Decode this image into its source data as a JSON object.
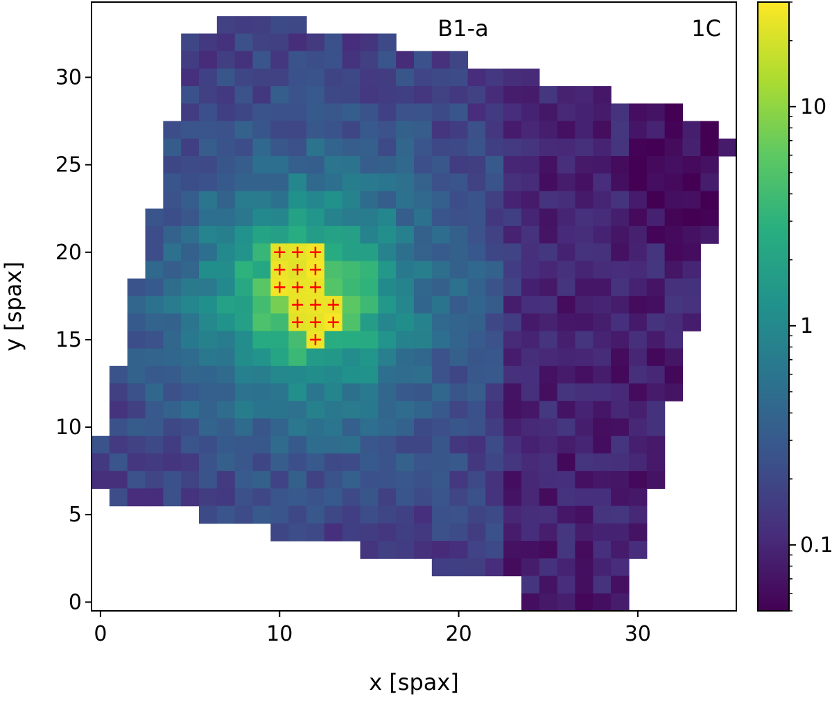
{
  "chart_data": {
    "type": "heatmap",
    "title": "",
    "panel_labels": [
      "B1-a",
      "1C"
    ],
    "xlabel": "x [spax]",
    "ylabel": "y [spax]",
    "xlim": [
      -0.5,
      35.5
    ],
    "ylim": [
      -0.5,
      34.3
    ],
    "x_ticks": [
      0,
      10,
      20,
      30
    ],
    "y_ticks": [
      0,
      5,
      10,
      15,
      20,
      25,
      30
    ],
    "x_tick_labels": [
      "0",
      "10",
      "20",
      "30"
    ],
    "y_tick_labels": [
      "0",
      "5",
      "10",
      "15",
      "20",
      "25",
      "30"
    ],
    "colormap": "viridis",
    "color_scale": "log",
    "colorbar": {
      "range": [
        0.05,
        30
      ],
      "major_ticks": [
        0.1,
        1,
        10
      ],
      "major_tick_labels": [
        "0.1",
        "1",
        "10"
      ]
    },
    "grid": false,
    "footprint_rows": [
      {
        "y": 33,
        "x_min": 7,
        "x_max": 11
      },
      {
        "y": 32,
        "x_min": 5,
        "x_max": 16
      },
      {
        "y": 31,
        "x_min": 5,
        "x_max": 20
      },
      {
        "y": 30,
        "x_min": 5,
        "x_max": 24
      },
      {
        "y": 29,
        "x_min": 5,
        "x_max": 28
      },
      {
        "y": 28,
        "x_min": 5,
        "x_max": 32
      },
      {
        "y": 27,
        "x_min": 4,
        "x_max": 34
      },
      {
        "y": 26,
        "x_min": 4,
        "x_max": 35
      },
      {
        "y": 25,
        "x_min": 4,
        "x_max": 34
      },
      {
        "y": 24,
        "x_min": 4,
        "x_max": 34
      },
      {
        "y": 23,
        "x_min": 4,
        "x_max": 34
      },
      {
        "y": 22,
        "x_min": 3,
        "x_max": 34
      },
      {
        "y": 21,
        "x_min": 3,
        "x_max": 34
      },
      {
        "y": 20,
        "x_min": 3,
        "x_max": 33
      },
      {
        "y": 19,
        "x_min": 3,
        "x_max": 33
      },
      {
        "y": 18,
        "x_min": 2,
        "x_max": 33
      },
      {
        "y": 17,
        "x_min": 2,
        "x_max": 33
      },
      {
        "y": 16,
        "x_min": 2,
        "x_max": 33
      },
      {
        "y": 15,
        "x_min": 2,
        "x_max": 32
      },
      {
        "y": 14,
        "x_min": 2,
        "x_max": 32
      },
      {
        "y": 13,
        "x_min": 1,
        "x_max": 32
      },
      {
        "y": 12,
        "x_min": 1,
        "x_max": 32
      },
      {
        "y": 11,
        "x_min": 1,
        "x_max": 31
      },
      {
        "y": 10,
        "x_min": 1,
        "x_max": 31
      },
      {
        "y": 9,
        "x_min": 0,
        "x_max": 31
      },
      {
        "y": 8,
        "x_min": 0,
        "x_max": 31
      },
      {
        "y": 7,
        "x_min": 0,
        "x_max": 31
      },
      {
        "y": 6,
        "x_min": 1,
        "x_max": 30
      },
      {
        "y": 5,
        "x_min": 6,
        "x_max": 30
      },
      {
        "y": 4,
        "x_min": 10,
        "x_max": 30
      },
      {
        "y": 3,
        "x_min": 15,
        "x_max": 30
      },
      {
        "y": 2,
        "x_min": 19,
        "x_max": 29
      },
      {
        "y": 1,
        "x_min": 24,
        "x_max": 29
      },
      {
        "y": 0,
        "x_min": 24,
        "x_max": 29
      }
    ],
    "bright_core_value": 25,
    "core_center": [
      11.5,
      17.5
    ],
    "marked_spaxels": [
      [
        10,
        20
      ],
      [
        11,
        20
      ],
      [
        12,
        20
      ],
      [
        10,
        19
      ],
      [
        11,
        19
      ],
      [
        12,
        19
      ],
      [
        10,
        18
      ],
      [
        11,
        18
      ],
      [
        12,
        18
      ],
      [
        11,
        17
      ],
      [
        12,
        17
      ],
      [
        13,
        17
      ],
      [
        11,
        16
      ],
      [
        12,
        16
      ],
      [
        13,
        16
      ],
      [
        12,
        15
      ]
    ],
    "marker_color": "#ff0000",
    "frame_color": "#000000"
  }
}
